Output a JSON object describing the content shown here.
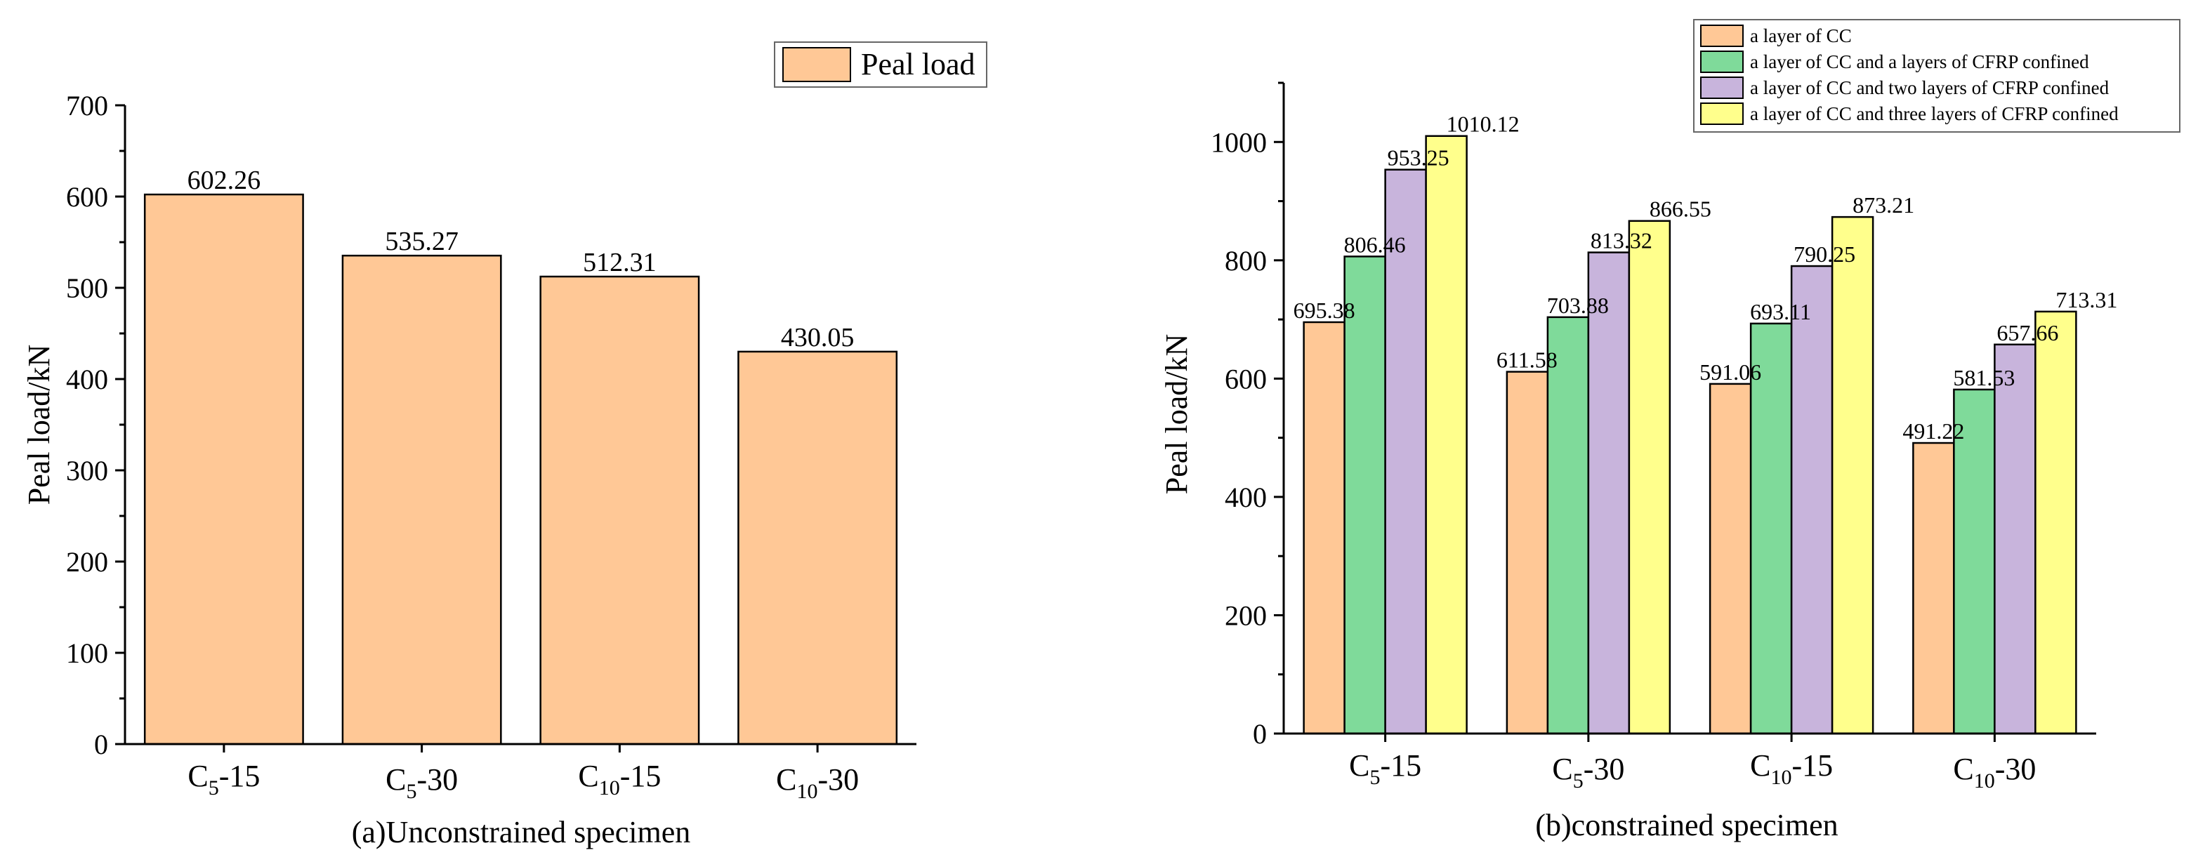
{
  "chart_data": [
    {
      "type": "bar",
      "id": "a",
      "caption": "(a)Unconstrained specimen",
      "ylabel": "Peal load/kN",
      "ylim": [
        0,
        700
      ],
      "yticks": [
        "0",
        "100",
        "200",
        "300",
        "400",
        "500",
        "600",
        "700"
      ],
      "categories": [
        {
          "base": "C",
          "sub": "5",
          "suffix": "-15"
        },
        {
          "base": "C",
          "sub": "5",
          "suffix": "-30"
        },
        {
          "base": "C",
          "sub": "10",
          "suffix": "-15"
        },
        {
          "base": "C",
          "sub": "10",
          "suffix": "-30"
        }
      ],
      "series": [
        {
          "name": "Peal load",
          "color": "#FFC896",
          "values": [
            602.26,
            535.27,
            512.31,
            430.05
          ],
          "labels": [
            "602.26",
            "535.27",
            "512.31",
            "430.05"
          ]
        }
      ],
      "legend_position": "top-right"
    },
    {
      "type": "bar",
      "id": "b",
      "caption": "(b)constrained specimen",
      "ylabel": "Peal load/kN",
      "ylim": [
        0,
        1100
      ],
      "yticks": [
        "0",
        "200",
        "400",
        "600",
        "800",
        "1000"
      ],
      "categories": [
        {
          "base": "C",
          "sub": "5",
          "suffix": "-15"
        },
        {
          "base": "C",
          "sub": "5",
          "suffix": "-30"
        },
        {
          "base": "C",
          "sub": "10",
          "suffix": "-15"
        },
        {
          "base": "C",
          "sub": "10",
          "suffix": "-30"
        }
      ],
      "series": [
        {
          "name": "a layer of CC",
          "color": "#FFC896",
          "values": [
            695.38,
            611.58,
            591.06,
            491.22
          ],
          "labels": [
            "695.38",
            "611.58",
            "591.06",
            "491.22"
          ]
        },
        {
          "name": "a layer of CC and a layers of CFRP confined",
          "color": "#7FDA9A",
          "values": [
            806.46,
            703.88,
            693.11,
            581.53
          ],
          "labels": [
            "806.46",
            "703.88",
            "693.11",
            "581.53"
          ]
        },
        {
          "name": "a layer of CC and two layers of CFRP confined",
          "color": "#C8B4DC",
          "values": [
            953.25,
            813.32,
            790.25,
            657.66
          ],
          "labels": [
            "953.25",
            "813.32",
            "790.25",
            "657.66"
          ]
        },
        {
          "name": "a layer of CC and three layers of CFRP confined",
          "color": "#FFFF8C",
          "values": [
            1010.12,
            866.55,
            873.21,
            713.31
          ],
          "labels": [
            "1010.12",
            "866.55",
            "873.21",
            "713.31"
          ]
        }
      ],
      "legend_position": "top-right"
    }
  ]
}
